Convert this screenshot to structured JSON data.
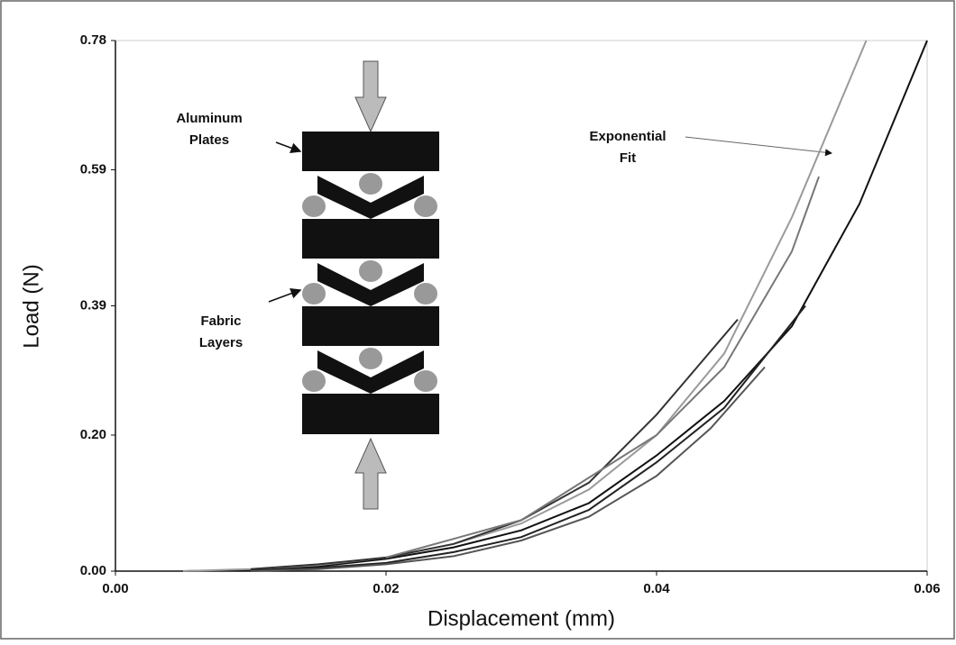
{
  "chart_data": {
    "type": "line",
    "xlabel": "Displacement (mm)",
    "ylabel": "Load (N)",
    "xlim": [
      0,
      0.06
    ],
    "ylim": [
      0,
      0.78
    ],
    "xticks": [
      {
        "value": 0,
        "label": "0.00"
      },
      0.02,
      0.04,
      0.06
    ],
    "yticks": [
      {
        "value": 0,
        "label": "0.00"
      },
      {
        "value": 0.2,
        "label": "0.20"
      },
      0.39,
      0.59,
      0.78
    ],
    "series": [
      {
        "color": "#111111",
        "x": [
          0.005,
          0.01,
          0.015,
          0.02,
          0.025,
          0.03,
          0.035,
          0.04,
          0.045,
          0.05,
          0.055,
          0.06
        ],
        "values": [
          0,
          0.002,
          0.007,
          0.018,
          0.035,
          0.06,
          0.1,
          0.17,
          0.25,
          0.36,
          0.54,
          0.78
        ]
      },
      {
        "color": "#9a9a9a",
        "x": [
          0.005,
          0.01,
          0.015,
          0.02,
          0.025,
          0.03,
          0.035,
          0.04,
          0.045,
          0.05,
          0.0555
        ],
        "values": [
          0,
          0.003,
          0.009,
          0.02,
          0.04,
          0.07,
          0.12,
          0.2,
          0.32,
          0.52,
          0.78
        ]
      },
      {
        "color": "#333333",
        "x": [
          0.01,
          0.015,
          0.02,
          0.025,
          0.03,
          0.035,
          0.04,
          0.043,
          0.046
        ],
        "values": [
          0.003,
          0.01,
          0.02,
          0.04,
          0.075,
          0.13,
          0.23,
          0.3,
          0.37
        ]
      },
      {
        "color": "#222222",
        "x": [
          0.01,
          0.015,
          0.02,
          0.025,
          0.03,
          0.035,
          0.04,
          0.045,
          0.051
        ],
        "values": [
          0.001,
          0.005,
          0.012,
          0.028,
          0.05,
          0.09,
          0.16,
          0.24,
          0.39
        ]
      },
      {
        "color": "#555555",
        "x": [
          0.01,
          0.015,
          0.02,
          0.025,
          0.03,
          0.035,
          0.04,
          0.044,
          0.048
        ],
        "values": [
          0,
          0.003,
          0.01,
          0.022,
          0.045,
          0.08,
          0.14,
          0.21,
          0.3
        ]
      },
      {
        "color": "#777777",
        "x": [
          0.02,
          0.03,
          0.04,
          0.045,
          0.05,
          0.052
        ],
        "values": [
          0.02,
          0.075,
          0.2,
          0.3,
          0.47,
          0.58
        ]
      }
    ],
    "annotations": [
      {
        "lines": [
          "Aluminum",
          "Plates"
        ]
      },
      {
        "lines": [
          "Fabric",
          "Layers"
        ]
      },
      {
        "lines": [
          "Exponential",
          "Fit"
        ]
      }
    ]
  }
}
